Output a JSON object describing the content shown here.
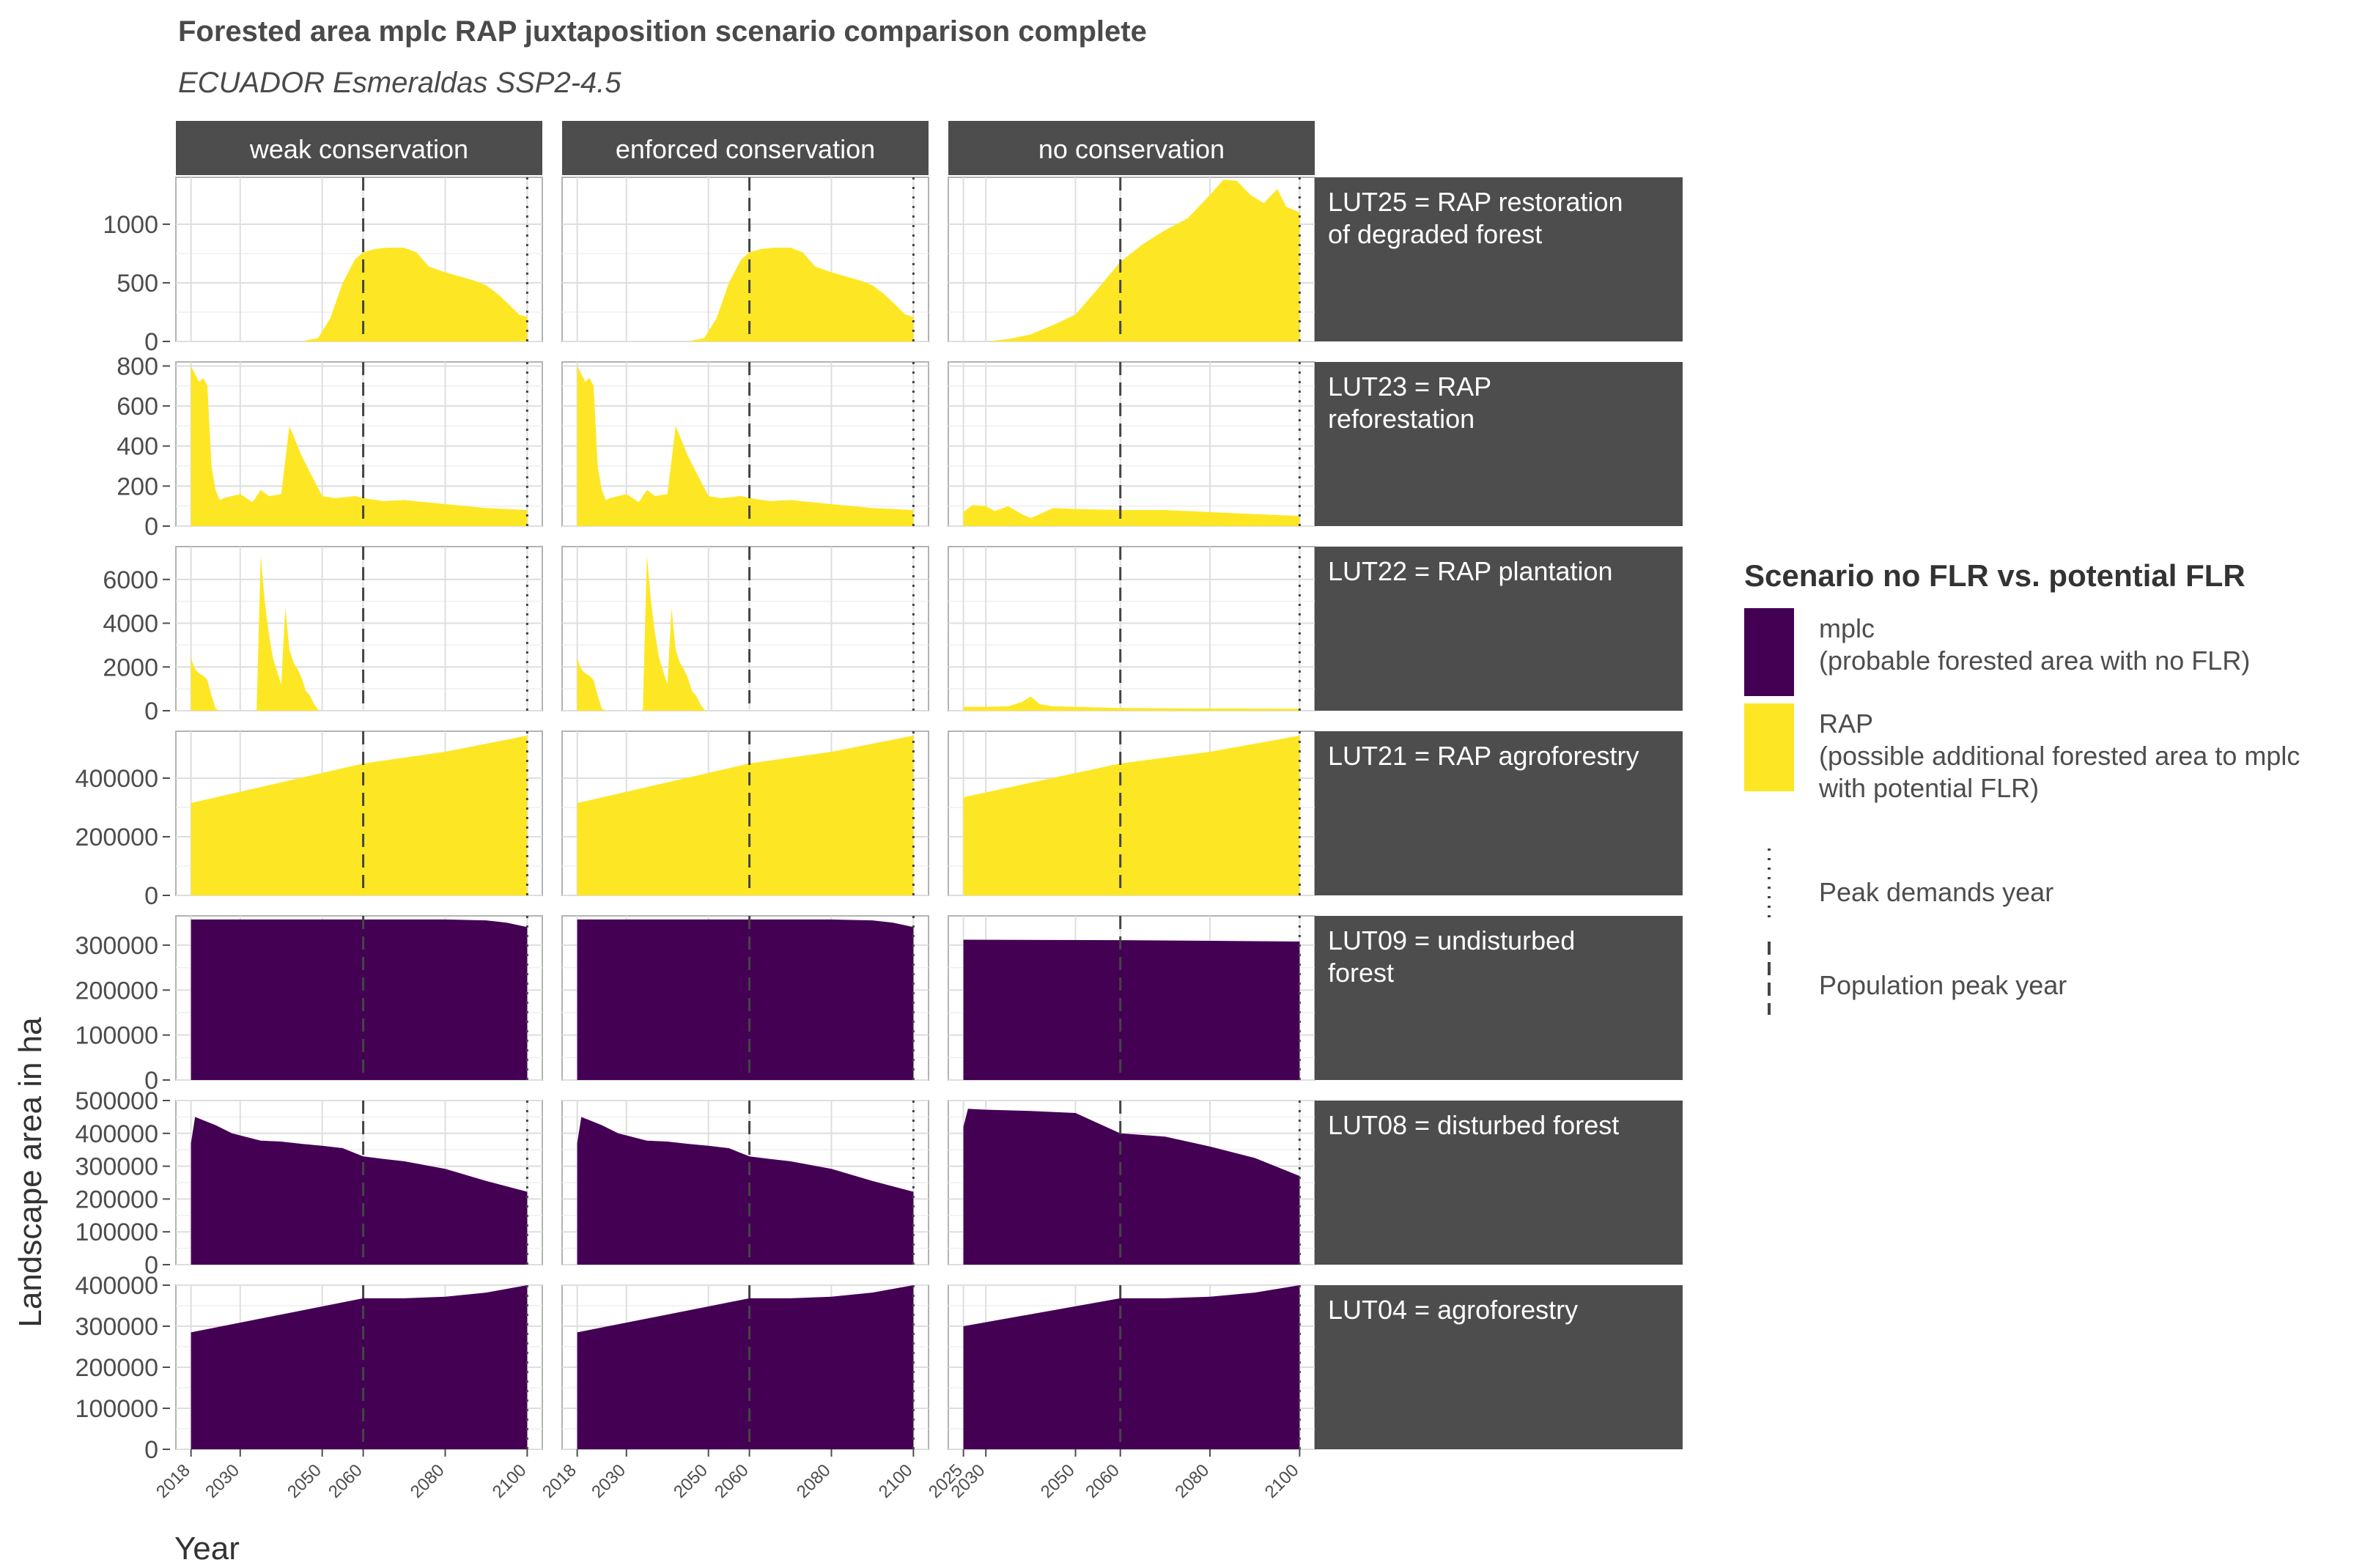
{
  "chart_data": {
    "type": "area",
    "title": "Forested area mplc RAP juxtaposition scenario comparison complete",
    "subtitle": "ECUADOR Esmeraldas SSP2-4.5",
    "xlabel": "Year",
    "ylabel": "Landscape area in ha",
    "grid": true,
    "legend_position": "right",
    "columns": [
      "weak conservation",
      "enforced conservation",
      "no conservation"
    ],
    "x_ticks": [
      [
        "2018",
        "2030",
        "2050",
        "2060",
        "2080",
        "2100"
      ],
      [
        "2018",
        "2030",
        "2050",
        "2060",
        "2080",
        "2100"
      ],
      [
        "2025",
        "2030",
        "2050",
        "2060",
        "2080",
        "2100"
      ]
    ],
    "x_range": [
      [
        2018,
        2100
      ],
      [
        2018,
        2100
      ],
      [
        2025,
        2100
      ]
    ],
    "legend": {
      "title": "Scenario no FLR vs. potential FLR",
      "fill_items": [
        {
          "key": "mplc",
          "lines": [
            "mplc",
            "(probable forested area with no FLR)"
          ],
          "color": "#440154"
        },
        {
          "key": "RAP",
          "lines": [
            "RAP",
            "(possible additional forested area to mplc",
            "with potential FLR)"
          ],
          "color": "#fde725"
        }
      ],
      "line_items": [
        {
          "label": "Peak demands year",
          "style": "dotted",
          "year": 2100
        },
        {
          "label": "Population peak year",
          "style": "dashed",
          "year": 2060
        }
      ]
    },
    "rows": [
      {
        "label": [
          "LUT25 = RAP restoration",
          "of degraded forest"
        ],
        "fill": "RAP",
        "ylim": [
          0,
          1400
        ],
        "y_ticks": [
          {
            "v": 0,
            "t": "0"
          },
          {
            "v": 500,
            "t": "500"
          },
          {
            "v": 1000,
            "t": "1000"
          }
        ],
        "series": [
          {
            "x": [
              2018,
              2030,
              2045,
              2049,
              2052,
              2055,
              2058,
              2060,
              2063,
              2066,
              2070,
              2073,
              2076,
              2080,
              2084,
              2087,
              2090,
              2093,
              2096,
              2098,
              2100
            ],
            "y": [
              0,
              0,
              0,
              30,
              200,
              500,
              700,
              760,
              790,
              800,
              800,
              760,
              640,
              590,
              550,
              520,
              480,
              400,
              300,
              230,
              210
            ]
          },
          {
            "x": [
              2018,
              2030,
              2045,
              2049,
              2052,
              2055,
              2058,
              2060,
              2063,
              2066,
              2070,
              2073,
              2076,
              2080,
              2084,
              2087,
              2090,
              2093,
              2096,
              2098,
              2100
            ],
            "y": [
              0,
              0,
              0,
              30,
              200,
              500,
              700,
              760,
              790,
              800,
              800,
              760,
              640,
              590,
              550,
              520,
              480,
              400,
              300,
              230,
              210
            ]
          },
          {
            "x": [
              2025,
              2030,
              2035,
              2040,
              2045,
              2050,
              2055,
              2060,
              2065,
              2070,
              2075,
              2080,
              2083,
              2086,
              2089,
              2092,
              2095,
              2097,
              2100
            ],
            "y": [
              0,
              0,
              20,
              60,
              140,
              230,
              450,
              680,
              830,
              950,
              1050,
              1250,
              1380,
              1370,
              1250,
              1180,
              1300,
              1150,
              1100
            ]
          }
        ]
      },
      {
        "label": [
          "LUT23 = RAP",
          "reforestation"
        ],
        "fill": "RAP",
        "ylim": [
          0,
          820
        ],
        "y_ticks": [
          {
            "v": 0,
            "t": "0"
          },
          {
            "v": 200,
            "t": "200"
          },
          {
            "v": 400,
            "t": "400"
          },
          {
            "v": 600,
            "t": "600"
          },
          {
            "v": 800,
            "t": "800"
          }
        ],
        "series": [
          {
            "x": [
              2018,
              2019,
              2020,
              2021,
              2022,
              2023,
              2024,
              2025,
              2026,
              2030,
              2033,
              2035,
              2037,
              2040,
              2042,
              2045,
              2048,
              2050,
              2053,
              2056,
              2058,
              2060,
              2065,
              2070,
              2080,
              2090,
              2100
            ],
            "y": [
              800,
              760,
              720,
              740,
              700,
              300,
              180,
              130,
              140,
              160,
              120,
              180,
              150,
              160,
              500,
              350,
              230,
              150,
              140,
              145,
              150,
              140,
              125,
              130,
              110,
              90,
              80
            ]
          },
          {
            "x": [
              2018,
              2019,
              2020,
              2021,
              2022,
              2023,
              2024,
              2025,
              2026,
              2030,
              2033,
              2035,
              2037,
              2040,
              2042,
              2045,
              2048,
              2050,
              2053,
              2056,
              2058,
              2060,
              2065,
              2070,
              2080,
              2090,
              2100
            ],
            "y": [
              800,
              760,
              720,
              740,
              700,
              300,
              180,
              130,
              140,
              160,
              120,
              180,
              150,
              160,
              500,
              350,
              230,
              150,
              140,
              145,
              150,
              140,
              125,
              130,
              110,
              90,
              80
            ]
          },
          {
            "x": [
              2025,
              2027,
              2030,
              2032,
              2035,
              2038,
              2040,
              2045,
              2050,
              2060,
              2070,
              2080,
              2090,
              2100
            ],
            "y": [
              70,
              105,
              100,
              75,
              100,
              60,
              40,
              90,
              85,
              80,
              80,
              70,
              60,
              50
            ]
          }
        ]
      },
      {
        "label": [
          "LUT22 = RAP plantation"
        ],
        "fill": "RAP",
        "ylim": [
          0,
          7500
        ],
        "y_ticks": [
          {
            "v": 0,
            "t": "0"
          },
          {
            "v": 2000,
            "t": "2000"
          },
          {
            "v": 4000,
            "t": "4000"
          },
          {
            "v": 6000,
            "t": "6000"
          }
        ],
        "series": [
          {
            "x": [
              2018,
              2019,
              2020,
              2021,
              2022,
              2023,
              2024,
              2025,
              2034,
              2035,
              2036,
              2037,
              2038,
              2039,
              2040,
              2041,
              2042,
              2043,
              2044,
              2045,
              2046,
              2047,
              2048,
              2049,
              2050,
              2051,
              2053,
              2060,
              2080,
              2100
            ],
            "y": [
              2400,
              1900,
              1700,
              1600,
              1400,
              700,
              100,
              0,
              0,
              7100,
              5000,
              3500,
              2400,
              1800,
              1200,
              4700,
              2800,
              2200,
              1900,
              1500,
              900,
              700,
              300,
              50,
              0,
              0,
              0,
              0,
              0,
              0
            ]
          },
          {
            "x": [
              2018,
              2019,
              2020,
              2021,
              2022,
              2023,
              2024,
              2025,
              2034,
              2035,
              2036,
              2037,
              2038,
              2039,
              2040,
              2041,
              2042,
              2043,
              2044,
              2045,
              2046,
              2047,
              2048,
              2049,
              2050,
              2051,
              2053,
              2060,
              2080,
              2100
            ],
            "y": [
              2400,
              1900,
              1700,
              1600,
              1400,
              700,
              100,
              0,
              0,
              7100,
              5000,
              3500,
              2400,
              1800,
              1200,
              4700,
              2800,
              2200,
              1900,
              1500,
              900,
              700,
              300,
              50,
              0,
              0,
              0,
              0,
              0,
              0
            ]
          },
          {
            "x": [
              2025,
              2030,
              2035,
              2038,
              2040,
              2042,
              2045,
              2050,
              2060,
              2080,
              2100
            ],
            "y": [
              180,
              180,
              200,
              400,
              650,
              300,
              200,
              180,
              120,
              100,
              90
            ]
          }
        ]
      },
      {
        "label": [
          "LUT21 = RAP agroforestry"
        ],
        "fill": "RAP",
        "ylim": [
          0,
          560000
        ],
        "y_ticks": [
          {
            "v": 0,
            "t": "0"
          },
          {
            "v": 200000,
            "t": "200000"
          },
          {
            "v": 400000,
            "t": "400000"
          }
        ],
        "series": [
          {
            "x": [
              2018,
              2060,
              2080,
              2100
            ],
            "y": [
              315000,
              450000,
              490000,
              545000
            ]
          },
          {
            "x": [
              2018,
              2060,
              2080,
              2100
            ],
            "y": [
              315000,
              450000,
              490000,
              545000
            ]
          },
          {
            "x": [
              2025,
              2060,
              2080,
              2100
            ],
            "y": [
              335000,
              450000,
              490000,
              545000
            ]
          }
        ]
      },
      {
        "label": [
          "LUT09 = undisturbed",
          "forest"
        ],
        "fill": "mplc",
        "ylim": [
          0,
          365000
        ],
        "y_ticks": [
          {
            "v": 0,
            "t": "0"
          },
          {
            "v": 100000,
            "t": "100000"
          },
          {
            "v": 200000,
            "t": "200000"
          },
          {
            "v": 300000,
            "t": "300000"
          }
        ],
        "series": [
          {
            "x": [
              2018,
              2080,
              2090,
              2095,
              2100
            ],
            "y": [
              357000,
              357000,
              355000,
              350000,
              340000
            ]
          },
          {
            "x": [
              2018,
              2080,
              2090,
              2095,
              2100
            ],
            "y": [
              357000,
              357000,
              355000,
              350000,
              340000
            ]
          },
          {
            "x": [
              2025,
              2060,
              2100
            ],
            "y": [
              312000,
              311000,
              308000
            ]
          }
        ]
      },
      {
        "label": [
          "LUT08 = disturbed forest"
        ],
        "fill": "mplc",
        "ylim": [
          0,
          500000
        ],
        "y_ticks": [
          {
            "v": 0,
            "t": "0"
          },
          {
            "v": 100000,
            "t": "100000"
          },
          {
            "v": 200000,
            "t": "200000"
          },
          {
            "v": 300000,
            "t": "300000"
          },
          {
            "v": 400000,
            "t": "400000"
          },
          {
            "v": 500000,
            "t": "500000"
          }
        ],
        "series": [
          {
            "x": [
              2018,
              2019,
              2024,
              2028,
              2035,
              2040,
              2045,
              2050,
              2055,
              2060,
              2065,
              2070,
              2080,
              2090,
              2100
            ],
            "y": [
              370000,
              450000,
              425000,
              400000,
              378000,
              375000,
              368000,
              362000,
              355000,
              330000,
              322000,
              315000,
              292000,
              255000,
              222000
            ]
          },
          {
            "x": [
              2018,
              2019,
              2024,
              2028,
              2035,
              2040,
              2045,
              2050,
              2055,
              2060,
              2065,
              2070,
              2080,
              2090,
              2100
            ],
            "y": [
              370000,
              450000,
              425000,
              400000,
              378000,
              375000,
              368000,
              362000,
              355000,
              330000,
              322000,
              315000,
              292000,
              255000,
              222000
            ]
          },
          {
            "x": [
              2025,
              2026,
              2030,
              2040,
              2050,
              2060,
              2070,
              2080,
              2090,
              2100
            ],
            "y": [
              420000,
              475000,
              472000,
              468000,
              462000,
              400000,
              390000,
              360000,
              325000,
              270000
            ]
          }
        ]
      },
      {
        "label": [
          "LUT04 = agroforestry"
        ],
        "fill": "mplc",
        "ylim": [
          0,
          400000
        ],
        "y_ticks": [
          {
            "v": 0,
            "t": "0"
          },
          {
            "v": 100000,
            "t": "100000"
          },
          {
            "v": 200000,
            "t": "200000"
          },
          {
            "v": 300000,
            "t": "300000"
          },
          {
            "v": 400000,
            "t": "400000"
          }
        ],
        "series": [
          {
            "x": [
              2018,
              2060,
              2070,
              2080,
              2090,
              2100
            ],
            "y": [
              285000,
              368000,
              368000,
              372000,
              382000,
              400000
            ]
          },
          {
            "x": [
              2018,
              2060,
              2070,
              2080,
              2090,
              2100
            ],
            "y": [
              285000,
              368000,
              368000,
              372000,
              382000,
              400000
            ]
          },
          {
            "x": [
              2025,
              2060,
              2070,
              2080,
              2090,
              2100
            ],
            "y": [
              300000,
              368000,
              368000,
              372000,
              382000,
              400000
            ]
          }
        ]
      }
    ]
  }
}
